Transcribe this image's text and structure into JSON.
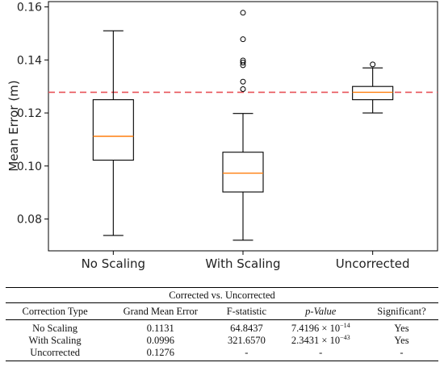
{
  "chart_data": {
    "type": "box",
    "title": "",
    "xlabel": "",
    "ylabel": "Mean Error (m)",
    "ylim": [
      0.068,
      0.162
    ],
    "yticks": [
      0.08,
      0.1,
      0.12,
      0.14,
      0.16
    ],
    "ytick_labels": [
      "0.08",
      "0.10",
      "0.12",
      "0.14",
      "0.16"
    ],
    "categories": [
      "No Scaling",
      "With Scaling",
      "Uncorrected"
    ],
    "boxes": [
      {
        "whislo": 0.0738,
        "q1": 0.1022,
        "med": 0.1112,
        "q3": 0.125,
        "whishi": 0.151,
        "fliers": []
      },
      {
        "whislo": 0.072,
        "q1": 0.0902,
        "med": 0.0973,
        "q3": 0.1052,
        "whishi": 0.1198,
        "fliers": [
          0.129,
          0.1318,
          0.138,
          0.139,
          0.1398,
          0.1478,
          0.1578
        ]
      },
      {
        "whislo": 0.12,
        "q1": 0.125,
        "med": 0.1278,
        "q3": 0.13,
        "whishi": 0.137,
        "fliers": [
          0.1383
        ]
      }
    ],
    "reference_line": {
      "y": 0.1278,
      "style": "dashed",
      "color": "#e8545a"
    },
    "colors": {
      "box": "#000000",
      "median": "#ff7f0e",
      "reference": "#e8545a"
    },
    "grid": false
  },
  "table": {
    "caption": "Corrected vs. Uncorrected",
    "headers": [
      "Correction Type",
      "Grand Mean Error",
      "F-statistic",
      "p-Value",
      "Significant?"
    ],
    "rows": [
      {
        "type": "No Scaling",
        "grand_mean": "0.1131",
        "f_stat": "64.8437",
        "p_mant": "7.4196",
        "p_exp": "−14",
        "significant": "Yes"
      },
      {
        "type": "With Scaling",
        "grand_mean": "0.0996",
        "f_stat": "321.6570",
        "p_mant": "2.3431",
        "p_exp": "−43",
        "significant": "Yes"
      },
      {
        "type": "Uncorrected",
        "grand_mean": "0.1276",
        "f_stat": "-",
        "p_value": "-",
        "significant": "-"
      }
    ],
    "p_base": "× 10"
  }
}
